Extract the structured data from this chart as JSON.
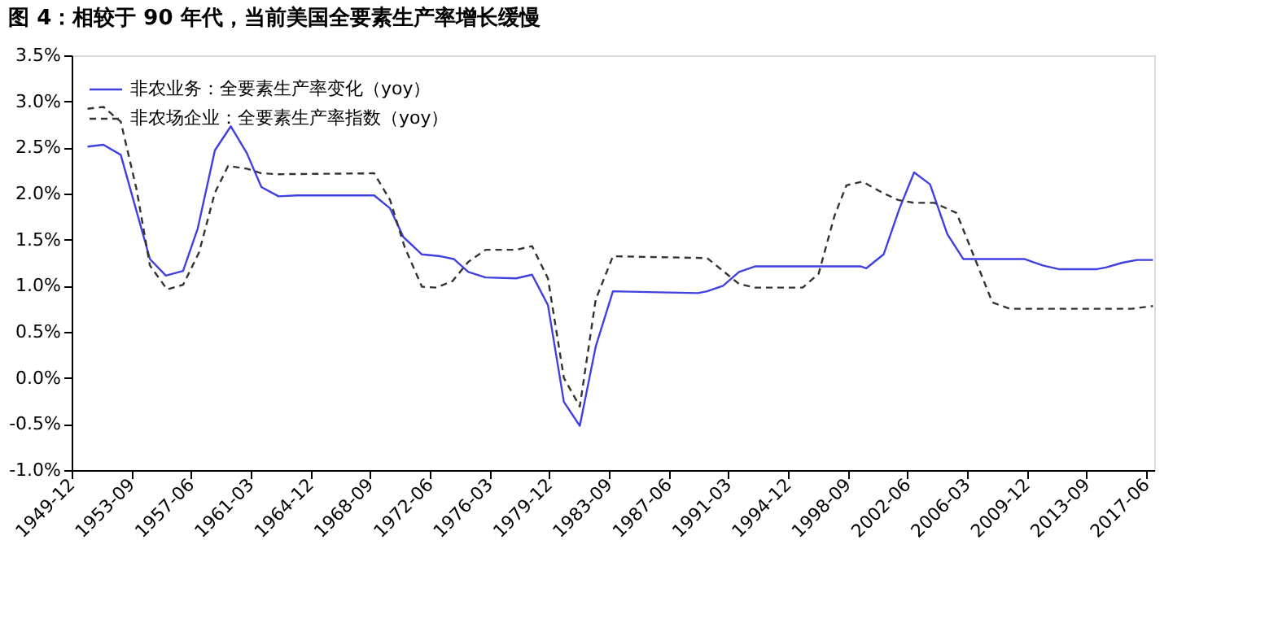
{
  "chart_data": {
    "type": "line",
    "title": "图 4：相较于 90 年代，当前美国全要素生产率增长缓慢",
    "series": [
      {
        "name": "非农业务：全要素生产率变化（yoy）",
        "color": "#4040e0",
        "line_style": "solid",
        "x": [
          "1950-12",
          "1951-12",
          "1953-01",
          "1954-11",
          "1955-11",
          "1956-12",
          "1957-11",
          "1958-12",
          "1959-12",
          "1960-12",
          "1961-11",
          "1962-12",
          "1964-02",
          "1968-12",
          "1969-12",
          "1970-10",
          "1971-12",
          "1973-02",
          "1973-12",
          "1974-11",
          "1975-12",
          "1977-11",
          "1978-11",
          "1979-11",
          "1980-11",
          "1981-11",
          "1982-11",
          "1983-12",
          "1989-04",
          "1989-11",
          "1990-11",
          "1991-11",
          "1992-11",
          "1999-07",
          "1999-11",
          "2000-12",
          "2001-12",
          "2002-11",
          "2003-11",
          "2004-12",
          "2005-12",
          "2009-10",
          "2010-12",
          "2011-12",
          "2014-05",
          "2014-12",
          "2015-12",
          "2016-11",
          "2017-11"
        ],
        "values": [
          2.51,
          2.53,
          2.42,
          1.29,
          1.11,
          1.16,
          1.62,
          2.47,
          2.73,
          2.44,
          2.07,
          1.97,
          1.98,
          1.98,
          1.84,
          1.53,
          1.34,
          1.32,
          1.29,
          1.15,
          1.09,
          1.08,
          1.12,
          0.79,
          -0.26,
          -0.52,
          0.34,
          0.94,
          0.92,
          0.94,
          1.0,
          1.15,
          1.21,
          1.21,
          1.19,
          1.34,
          1.84,
          2.23,
          2.1,
          1.56,
          1.29,
          1.29,
          1.22,
          1.18,
          1.18,
          1.2,
          1.25,
          1.28,
          1.28
        ]
      },
      {
        "name": "非农场企业：全要素生产率指数（yoy）",
        "color": "#333333",
        "line_style": "dashed",
        "x": [
          "1950-12",
          "1951-12",
          "1953-01",
          "1954-01",
          "1954-11",
          "1955-12",
          "1956-12",
          "1957-12",
          "1958-12",
          "1959-10",
          "1960-12",
          "1961-11",
          "1962-12",
          "1968-12",
          "1969-12",
          "1970-11",
          "1971-12",
          "1972-11",
          "1973-11",
          "1974-11",
          "1975-12",
          "1977-11",
          "1978-11",
          "1979-11",
          "1980-11",
          "1981-11",
          "1982-11",
          "1983-12",
          "1989-11",
          "1990-11",
          "1991-11",
          "1992-11",
          "1995-11",
          "1996-11",
          "1997-11",
          "1998-08",
          "1999-08",
          "2000-11",
          "2001-11",
          "2002-11",
          "2004-02",
          "2005-07",
          "2006-07",
          "2007-10",
          "2008-11",
          "2016-07",
          "2017-11"
        ],
        "values": [
          2.92,
          2.94,
          2.78,
          2.04,
          1.22,
          0.96,
          1.01,
          1.36,
          2.01,
          2.3,
          2.27,
          2.22,
          2.21,
          2.22,
          1.93,
          1.42,
          0.99,
          0.98,
          1.05,
          1.26,
          1.39,
          1.39,
          1.43,
          1.08,
          0.0,
          -0.31,
          0.85,
          1.32,
          1.3,
          1.16,
          1.02,
          0.98,
          0.98,
          1.13,
          1.76,
          2.09,
          2.13,
          2.01,
          1.93,
          1.9,
          1.9,
          1.79,
          1.36,
          0.82,
          0.75,
          0.75,
          0.78
        ]
      }
    ],
    "xlim": [
      "1949-12",
      "2017-12"
    ],
    "xticks": [
      "1949-12",
      "1953-09",
      "1957-06",
      "1961-03",
      "1964-12",
      "1968-09",
      "1972-06",
      "1976-03",
      "1979-12",
      "1983-09",
      "1987-06",
      "1991-03",
      "1994-12",
      "1998-09",
      "2002-06",
      "2006-03",
      "2009-12",
      "2013-09",
      "2017-06"
    ],
    "ylim": [
      -1.0,
      3.5
    ],
    "yticks": [
      {
        "value": -1.0,
        "label": "-1.0%"
      },
      {
        "value": -0.5,
        "label": "-0.5%"
      },
      {
        "value": 0,
        "label": "0.0%"
      },
      {
        "value": 0.5,
        "label": "0.5%"
      },
      {
        "value": 1.0,
        "label": "1.0%"
      },
      {
        "value": 1.5,
        "label": "1.5%"
      },
      {
        "value": 2.0,
        "label": "2.0%"
      },
      {
        "value": 2.5,
        "label": "2.5%"
      },
      {
        "value": 3.0,
        "label": "3.0%"
      },
      {
        "value": 3.5,
        "label": "3.5%"
      }
    ],
    "grid": false,
    "legend": "top left",
    "marker": "none"
  }
}
